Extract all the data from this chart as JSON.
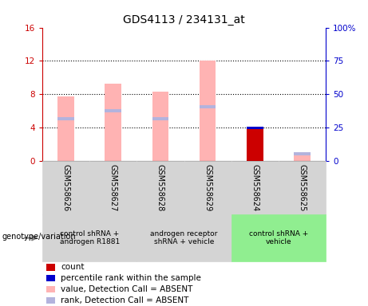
{
  "title": "GDS4113 / 234131_at",
  "samples": [
    "GSM558626",
    "GSM558627",
    "GSM558628",
    "GSM558629",
    "GSM558624",
    "GSM558625"
  ],
  "bar_data": [
    {
      "sample": "GSM558626",
      "pink_val": 7.7,
      "lavender_val": 5.0,
      "red_val": 0,
      "blue_val": 0
    },
    {
      "sample": "GSM558627",
      "pink_val": 9.3,
      "lavender_val": 6.0,
      "red_val": 0,
      "blue_val": 0
    },
    {
      "sample": "GSM558628",
      "pink_val": 8.3,
      "lavender_val": 5.0,
      "red_val": 0,
      "blue_val": 0
    },
    {
      "sample": "GSM558629",
      "pink_val": 12.0,
      "lavender_val": 6.5,
      "red_val": 0,
      "blue_val": 0
    },
    {
      "sample": "GSM558624",
      "pink_val": 0,
      "lavender_val": 0,
      "red_val": 4.0,
      "blue_val": 4.05
    },
    {
      "sample": "GSM558625",
      "pink_val": 0.7,
      "lavender_val": 0.85,
      "red_val": 0,
      "blue_val": 0
    }
  ],
  "group_configs": [
    {
      "sidx": [
        0,
        1
      ],
      "label": "control shRNA +\nandrogen R1881",
      "color": "#d4d4d4"
    },
    {
      "sidx": [
        2,
        3
      ],
      "label": "androgen receptor\nshRNA + vehicle",
      "color": "#d4d4d4"
    },
    {
      "sidx": [
        4,
        5
      ],
      "label": "control shRNA +\nvehicle",
      "color": "#90ee90"
    }
  ],
  "ylim_left": [
    0,
    16
  ],
  "ylim_right": [
    0,
    100
  ],
  "yticks_left": [
    0,
    4,
    8,
    12,
    16
  ],
  "yticks_right": [
    0,
    25,
    50,
    75,
    100
  ],
  "ytick_labels_left": [
    "0",
    "4",
    "8",
    "12",
    "16"
  ],
  "ytick_labels_right": [
    "0",
    "25",
    "50",
    "75",
    "100%"
  ],
  "left_axis_color": "#cc0000",
  "right_axis_color": "#0000cc",
  "pink_color": "#ffb3b3",
  "lavender_color": "#b3b3dd",
  "red_color": "#cc0000",
  "blue_color": "#0000cc",
  "bar_width": 0.35,
  "dotted_lines": [
    4,
    8,
    12
  ],
  "legend_items": [
    {
      "label": "count",
      "color": "#cc0000"
    },
    {
      "label": "percentile rank within the sample",
      "color": "#0000cc"
    },
    {
      "label": "value, Detection Call = ABSENT",
      "color": "#ffb3b3"
    },
    {
      "label": "rank, Detection Call = ABSENT",
      "color": "#b3b3dd"
    }
  ],
  "genotype_label": "genotype/variation",
  "title_fontsize": 10,
  "tick_fontsize": 7.5,
  "label_fontsize": 6.5,
  "legend_fontsize": 7.5,
  "sample_label_fontsize": 7
}
